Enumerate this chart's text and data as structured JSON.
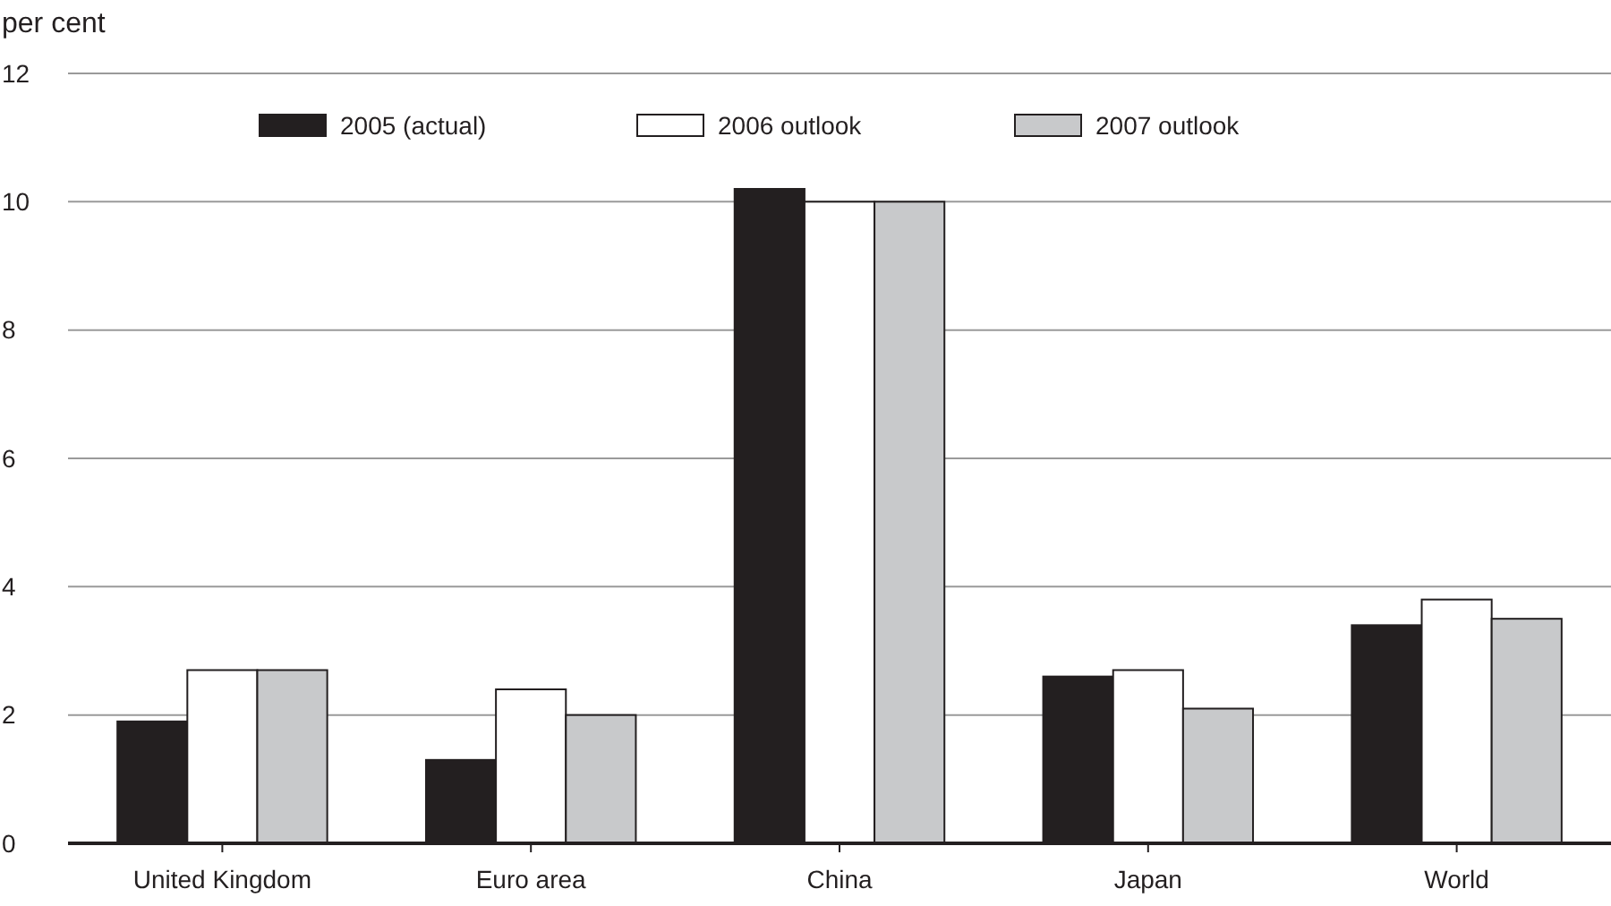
{
  "chart_data": {
    "type": "bar",
    "ylabel": "per cent",
    "categories": [
      "United Kingdom",
      "Euro area",
      "China",
      "Japan",
      "World"
    ],
    "series": [
      {
        "name": "2005 (actual)",
        "color": "#231f20",
        "values": [
          1.9,
          1.3,
          10.2,
          2.6,
          3.4
        ]
      },
      {
        "name": "2006 outlook",
        "color": "#ffffff",
        "values": [
          2.7,
          2.4,
          10.0,
          2.7,
          3.8
        ]
      },
      {
        "name": "2007 outlook",
        "color": "#c8c9cb",
        "values": [
          2.7,
          2.0,
          10.0,
          2.1,
          3.5
        ]
      }
    ],
    "ylim": [
      0,
      12
    ],
    "yticks": [
      0,
      2,
      4,
      6,
      8,
      10,
      12
    ],
    "grid": "y",
    "legend": "top"
  }
}
